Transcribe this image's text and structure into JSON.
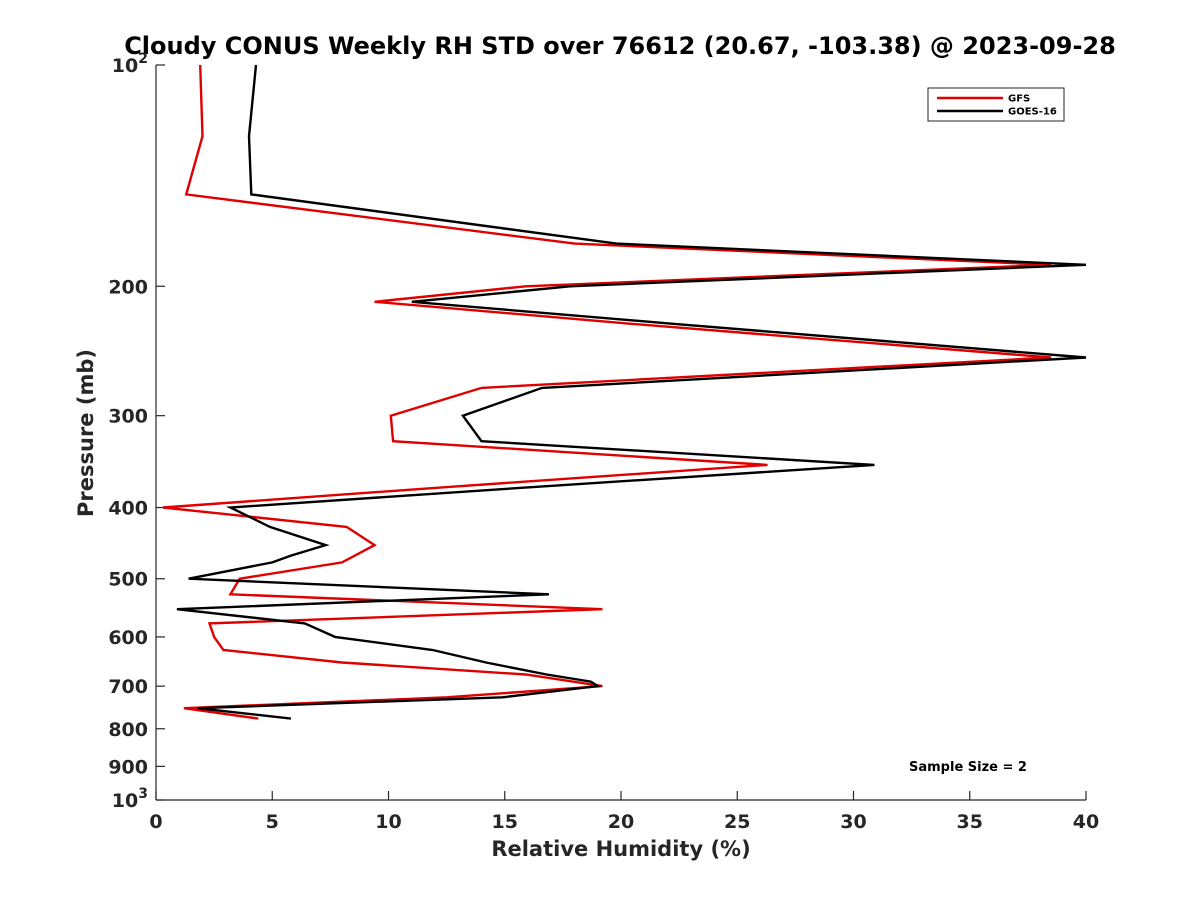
{
  "chart_data": {
    "type": "line",
    "title": "Cloudy CONUS Weekly RH STD over 76612 (20.67, -103.38) @ 2023-09-28",
    "xlabel": "Relative Humidity (%)",
    "ylabel": "Pressure (mb)",
    "xlim": [
      0,
      40
    ],
    "ylim": [
      100,
      1000
    ],
    "yscale": "log",
    "y_reversed": true,
    "x_ticks": [
      {
        "value": 0,
        "label": "0"
      },
      {
        "value": 5,
        "label": "5"
      },
      {
        "value": 10,
        "label": "10"
      },
      {
        "value": 15,
        "label": "15"
      },
      {
        "value": 20,
        "label": "20"
      },
      {
        "value": 25,
        "label": "25"
      },
      {
        "value": 30,
        "label": "30"
      },
      {
        "value": 35,
        "label": "35"
      },
      {
        "value": 40,
        "label": "40"
      }
    ],
    "y_ticks": [
      {
        "value": 100,
        "base": "10",
        "exp": "2"
      },
      {
        "value": 200,
        "label": "200"
      },
      {
        "value": 300,
        "label": "300"
      },
      {
        "value": 400,
        "label": "400"
      },
      {
        "value": 500,
        "label": "500"
      },
      {
        "value": 600,
        "label": "600"
      },
      {
        "value": 700,
        "label": "700"
      },
      {
        "value": 800,
        "label": "800"
      },
      {
        "value": 900,
        "label": "900"
      },
      {
        "value": 1000,
        "base": "10",
        "exp": "3"
      }
    ],
    "legend_position": "top-right",
    "series": [
      {
        "name": "GFS",
        "color": "#e00000",
        "points": [
          [
            1.9,
            100
          ],
          [
            2.0,
            125
          ],
          [
            1.3,
            150
          ],
          [
            18.0,
            175
          ],
          [
            38.5,
            187
          ],
          [
            15.9,
            200
          ],
          [
            9.4,
            210
          ],
          [
            20.5,
            225
          ],
          [
            38.5,
            250
          ],
          [
            14.0,
            275
          ],
          [
            10.1,
            300
          ],
          [
            10.2,
            325
          ],
          [
            26.3,
            350
          ],
          [
            12.6,
            375
          ],
          [
            0.3,
            400
          ],
          [
            8.2,
            425
          ],
          [
            9.4,
            450
          ],
          [
            8.0,
            475
          ],
          [
            3.6,
            500
          ],
          [
            3.2,
            525
          ],
          [
            19.2,
            550
          ],
          [
            2.3,
            575
          ],
          [
            2.5,
            600
          ],
          [
            2.9,
            625
          ],
          [
            8.0,
            650
          ],
          [
            15.9,
            675
          ],
          [
            19.2,
            700
          ],
          [
            12.5,
            725
          ],
          [
            1.2,
            750
          ],
          [
            4.4,
            775
          ]
        ]
      },
      {
        "name": "GOES-16",
        "color": "#000000",
        "points": [
          [
            4.3,
            100
          ],
          [
            4.0,
            125
          ],
          [
            4.1,
            150
          ],
          [
            19.8,
            175
          ],
          [
            40.0,
            187
          ],
          [
            17.8,
            200
          ],
          [
            11.0,
            210
          ],
          [
            22.3,
            225
          ],
          [
            40.0,
            250
          ],
          [
            16.6,
            275
          ],
          [
            13.2,
            300
          ],
          [
            14.0,
            325
          ],
          [
            30.9,
            350
          ],
          [
            16.3,
            375
          ],
          [
            3.2,
            400
          ],
          [
            4.9,
            425
          ],
          [
            7.3,
            450
          ],
          [
            5.8,
            465
          ],
          [
            5.0,
            475
          ],
          [
            1.4,
            500
          ],
          [
            16.9,
            525
          ],
          [
            0.9,
            550
          ],
          [
            6.4,
            575
          ],
          [
            7.7,
            600
          ],
          [
            11.9,
            625
          ],
          [
            14.2,
            650
          ],
          [
            16.8,
            675
          ],
          [
            18.7,
            690
          ],
          [
            19.0,
            700
          ],
          [
            14.9,
            725
          ],
          [
            1.8,
            750
          ],
          [
            5.8,
            775
          ]
        ]
      }
    ],
    "annotation": "Sample Size = 2"
  }
}
